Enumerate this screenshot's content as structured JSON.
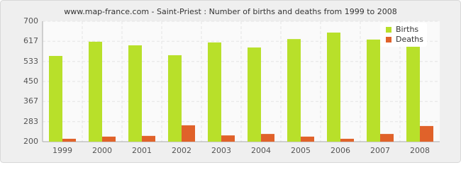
{
  "chart_data": {
    "type": "bar",
    "title": "www.map-france.com - Saint-Priest : Number of births and deaths from 1999 to 2008",
    "categories": [
      "1999",
      "2000",
      "2001",
      "2002",
      "2003",
      "2004",
      "2005",
      "2006",
      "2007",
      "2008"
    ],
    "series": [
      {
        "name": "Births",
        "color": "#b8e02a",
        "values": [
          556,
          615,
          600,
          559,
          612,
          591,
          626,
          653,
          624,
          606
        ]
      },
      {
        "name": "Deaths",
        "color": "#e0622a",
        "values": [
          212,
          221,
          224,
          268,
          226,
          232,
          221,
          212,
          232,
          265
        ]
      }
    ],
    "ylim": [
      200,
      700
    ],
    "yticks": [
      200,
      283,
      367,
      450,
      533,
      617,
      700
    ],
    "grid": true,
    "legend": "upper right"
  }
}
